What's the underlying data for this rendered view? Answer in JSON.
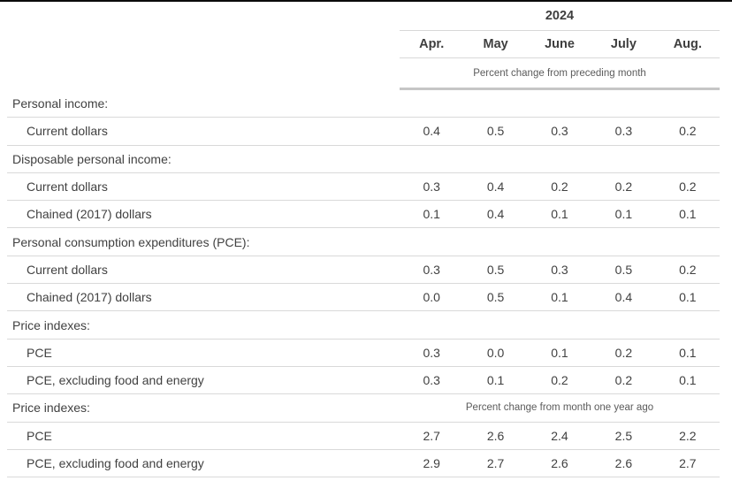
{
  "header": {
    "year": "2024",
    "months": [
      "Apr.",
      "May",
      "June",
      "July",
      "Aug."
    ],
    "unit_note": "Percent change from preceding month"
  },
  "rows": [
    {
      "type": "section",
      "label": "Personal income:"
    },
    {
      "type": "data",
      "label": "Current dollars",
      "values": [
        "0.4",
        "0.5",
        "0.3",
        "0.3",
        "0.2"
      ]
    },
    {
      "type": "section",
      "label": "Disposable personal income:"
    },
    {
      "type": "data",
      "label": "Current dollars",
      "values": [
        "0.3",
        "0.4",
        "0.2",
        "0.2",
        "0.2"
      ]
    },
    {
      "type": "data",
      "label": "Chained (2017) dollars",
      "values": [
        "0.1",
        "0.4",
        "0.1",
        "0.1",
        "0.1"
      ]
    },
    {
      "type": "section",
      "label": "Personal consumption expenditures (PCE):"
    },
    {
      "type": "data",
      "label": "Current dollars",
      "values": [
        "0.3",
        "0.5",
        "0.3",
        "0.5",
        "0.2"
      ]
    },
    {
      "type": "data",
      "label": "Chained (2017) dollars",
      "values": [
        "0.0",
        "0.5",
        "0.1",
        "0.4",
        "0.1"
      ]
    },
    {
      "type": "section",
      "label": "Price indexes:"
    },
    {
      "type": "data",
      "label": "PCE",
      "values": [
        "0.3",
        "0.0",
        "0.1",
        "0.2",
        "0.1"
      ]
    },
    {
      "type": "data",
      "label": "PCE, excluding food and energy",
      "values": [
        "0.3",
        "0.1",
        "0.2",
        "0.2",
        "0.1"
      ]
    },
    {
      "type": "section-note",
      "label": "Price indexes:",
      "note": "Percent change from month one year ago"
    },
    {
      "type": "data",
      "label": "PCE",
      "values": [
        "2.7",
        "2.6",
        "2.4",
        "2.5",
        "2.2"
      ]
    },
    {
      "type": "data",
      "label": "PCE, excluding food and energy",
      "values": [
        "2.9",
        "2.7",
        "2.6",
        "2.6",
        "2.7"
      ]
    }
  ],
  "colors": {
    "top_rule": "#0b0b0b",
    "separator": "#d9d9d9",
    "thick_separator": "#c6c6c6",
    "text": "#414141",
    "note_text": "#5b5b5b"
  }
}
